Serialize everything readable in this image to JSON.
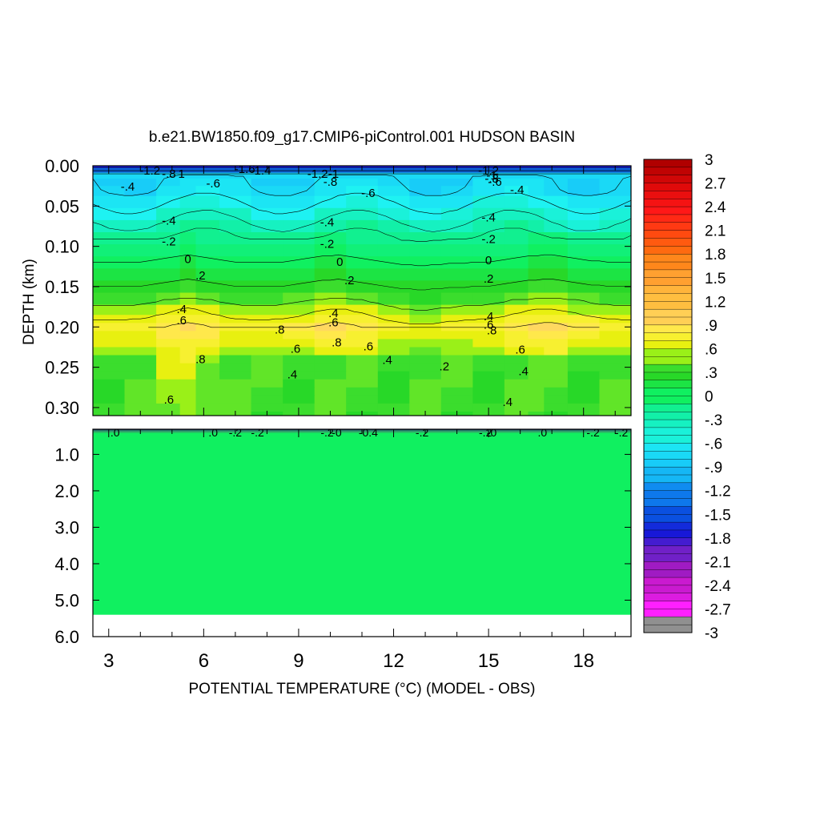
{
  "chart_data": {
    "type": "heatmap",
    "title": "b.e21.BW1850.f09_g17.CMIP6-piControl.001 HUDSON BASIN",
    "xlabel": "POTENTIAL TEMPERATURE (°C) (MODEL - OBS)",
    "ylabel": "DEPTH (km)",
    "x_ticks": [
      "3",
      "6",
      "9",
      "12",
      "15",
      "18"
    ],
    "x_tick_values": [
      3,
      6,
      9,
      12,
      15,
      18
    ],
    "xlim": [
      2.5,
      19.5
    ],
    "upper_panel": {
      "ylim": [
        0.0,
        0.31
      ],
      "y_ticks": [
        "0.00",
        "0.05",
        "0.10",
        "0.15",
        "0.20",
        "0.25",
        "0.30"
      ],
      "y_tick_values": [
        0.0,
        0.05,
        0.1,
        0.15,
        0.2,
        0.25,
        0.3
      ],
      "x": [
        3.0,
        4.0,
        5.0,
        5.5,
        6.0,
        7.0,
        8.0,
        9.0,
        10.0,
        11.0,
        12.0,
        13.0,
        14.0,
        15.0,
        16.0,
        16.5,
        17.0,
        18.0,
        19.0
      ],
      "depth": [
        0.0,
        0.005,
        0.012,
        0.02,
        0.03,
        0.045,
        0.06,
        0.075,
        0.09,
        0.105,
        0.12,
        0.135,
        0.15,
        0.165,
        0.18,
        0.19,
        0.2,
        0.21,
        0.22,
        0.23,
        0.24,
        0.25,
        0.26,
        0.27,
        0.28,
        0.29,
        0.3,
        0.31
      ]
    },
    "lower_panel": {
      "ylim": [
        0.31,
        6.0
      ],
      "y_ticks": [
        "1.0",
        "2.0",
        "3.0",
        "4.0",
        "5.0",
        "6.0"
      ],
      "y_tick_values": [
        1.0,
        2.0,
        3.0,
        4.0,
        5.0,
        6.0
      ],
      "data_bottom_depth": 5.4,
      "value": 0.0
    },
    "contour_labels": [
      {
        "text": "-1.2",
        "x": 4.3,
        "d": 0.006
      },
      {
        "text": "-.8",
        "x": 4.9,
        "d": 0.01
      },
      {
        "text": "1",
        "x": 5.3,
        "d": 0.01
      },
      {
        "text": "-.4",
        "x": 3.6,
        "d": 0.026
      },
      {
        "text": "-.6",
        "x": 6.3,
        "d": 0.022
      },
      {
        "text": "-1.6",
        "x": 7.3,
        "d": 0.004
      },
      {
        "text": "-1.4",
        "x": 7.8,
        "d": 0.006
      },
      {
        "text": "-1.2",
        "x": 9.6,
        "d": 0.01
      },
      {
        "text": "-1",
        "x": 10.1,
        "d": 0.01
      },
      {
        "text": "-.8",
        "x": 10.0,
        "d": 0.02
      },
      {
        "text": "-.6",
        "x": 11.2,
        "d": 0.034
      },
      {
        "text": "-1.2",
        "x": 15.0,
        "d": 0.006
      },
      {
        "text": "-1",
        "x": 15.1,
        "d": 0.012
      },
      {
        "text": "-.8",
        "x": 15.1,
        "d": 0.016
      },
      {
        "text": "-.6",
        "x": 15.2,
        "d": 0.02
      },
      {
        "text": "-.4",
        "x": 15.9,
        "d": 0.03
      },
      {
        "text": "-.4",
        "x": 4.9,
        "d": 0.068
      },
      {
        "text": "-.4",
        "x": 9.9,
        "d": 0.07
      },
      {
        "text": "-.4",
        "x": 15.0,
        "d": 0.064
      },
      {
        "text": "-.2",
        "x": 4.9,
        "d": 0.094
      },
      {
        "text": "-.2",
        "x": 9.9,
        "d": 0.097
      },
      {
        "text": "-.2",
        "x": 15.0,
        "d": 0.091
      },
      {
        "text": "0",
        "x": 5.5,
        "d": 0.116
      },
      {
        "text": "0",
        "x": 10.3,
        "d": 0.119
      },
      {
        "text": "0",
        "x": 15.0,
        "d": 0.117
      },
      {
        "text": ".2",
        "x": 5.9,
        "d": 0.136
      },
      {
        "text": ".2",
        "x": 10.6,
        "d": 0.142
      },
      {
        "text": ".2",
        "x": 15.0,
        "d": 0.14
      },
      {
        "text": ".4",
        "x": 5.3,
        "d": 0.178
      },
      {
        "text": ".6",
        "x": 5.3,
        "d": 0.192
      },
      {
        "text": ".4",
        "x": 10.1,
        "d": 0.183
      },
      {
        "text": ".6",
        "x": 10.1,
        "d": 0.194
      },
      {
        "text": ".4",
        "x": 15.0,
        "d": 0.187
      },
      {
        "text": ".6",
        "x": 15.0,
        "d": 0.197
      },
      {
        "text": ".8",
        "x": 15.1,
        "d": 0.204
      },
      {
        "text": ".8",
        "x": 8.4,
        "d": 0.203
      },
      {
        "text": ".8",
        "x": 10.2,
        "d": 0.219
      },
      {
        "text": ".6",
        "x": 8.9,
        "d": 0.227
      },
      {
        "text": ".6",
        "x": 11.2,
        "d": 0.224
      },
      {
        "text": ".6",
        "x": 16.0,
        "d": 0.228
      },
      {
        "text": ".8",
        "x": 5.9,
        "d": 0.24
      },
      {
        "text": ".4",
        "x": 11.8,
        "d": 0.241
      },
      {
        "text": ".2",
        "x": 13.6,
        "d": 0.249
      },
      {
        "text": ".4",
        "x": 16.1,
        "d": 0.255
      },
      {
        "text": ".4",
        "x": 8.8,
        "d": 0.259
      },
      {
        "text": ".6",
        "x": 4.9,
        "d": 0.29
      },
      {
        "text": ".4",
        "x": 15.6,
        "d": 0.293
      }
    ],
    "lower_contour_labels": [
      {
        "text": ".0",
        "x": 3.2
      },
      {
        "text": ".0",
        "x": 6.3
      },
      {
        "text": "-.2",
        "x": 7.0
      },
      {
        "text": "-.2",
        "x": 7.7
      },
      {
        "text": "-.2",
        "x": 9.9
      },
      {
        "text": "-0",
        "x": 10.2
      },
      {
        "text": "-0.4",
        "x": 11.2
      },
      {
        "text": "-.2",
        "x": 12.9
      },
      {
        "text": "-.2",
        "x": 14.9
      },
      {
        "text": "-0",
        "x": 15.1
      },
      {
        "text": ".0",
        "x": 16.7
      },
      {
        "text": "-.2",
        "x": 18.3
      },
      {
        "text": "-.2",
        "x": 19.2
      }
    ],
    "colorbar": {
      "min": -3,
      "max": 3,
      "step": 0.1,
      "labels": [
        "3",
        "2.7",
        "2.4",
        "2.1",
        "1.8",
        "1.5",
        "1.2",
        ".9",
        ".6",
        ".3",
        "0",
        "-.3",
        "-.6",
        "-.9",
        "-1.2",
        "-1.5",
        "-1.8",
        "-2.1",
        "-2.4",
        "-2.7",
        "-3"
      ],
      "label_values": [
        3,
        2.7,
        2.4,
        2.1,
        1.8,
        1.5,
        1.2,
        0.9,
        0.6,
        0.3,
        0,
        -0.3,
        -0.6,
        -0.9,
        -1.2,
        -1.5,
        -1.8,
        -2.1,
        -2.4,
        -2.7,
        -3
      ]
    }
  }
}
